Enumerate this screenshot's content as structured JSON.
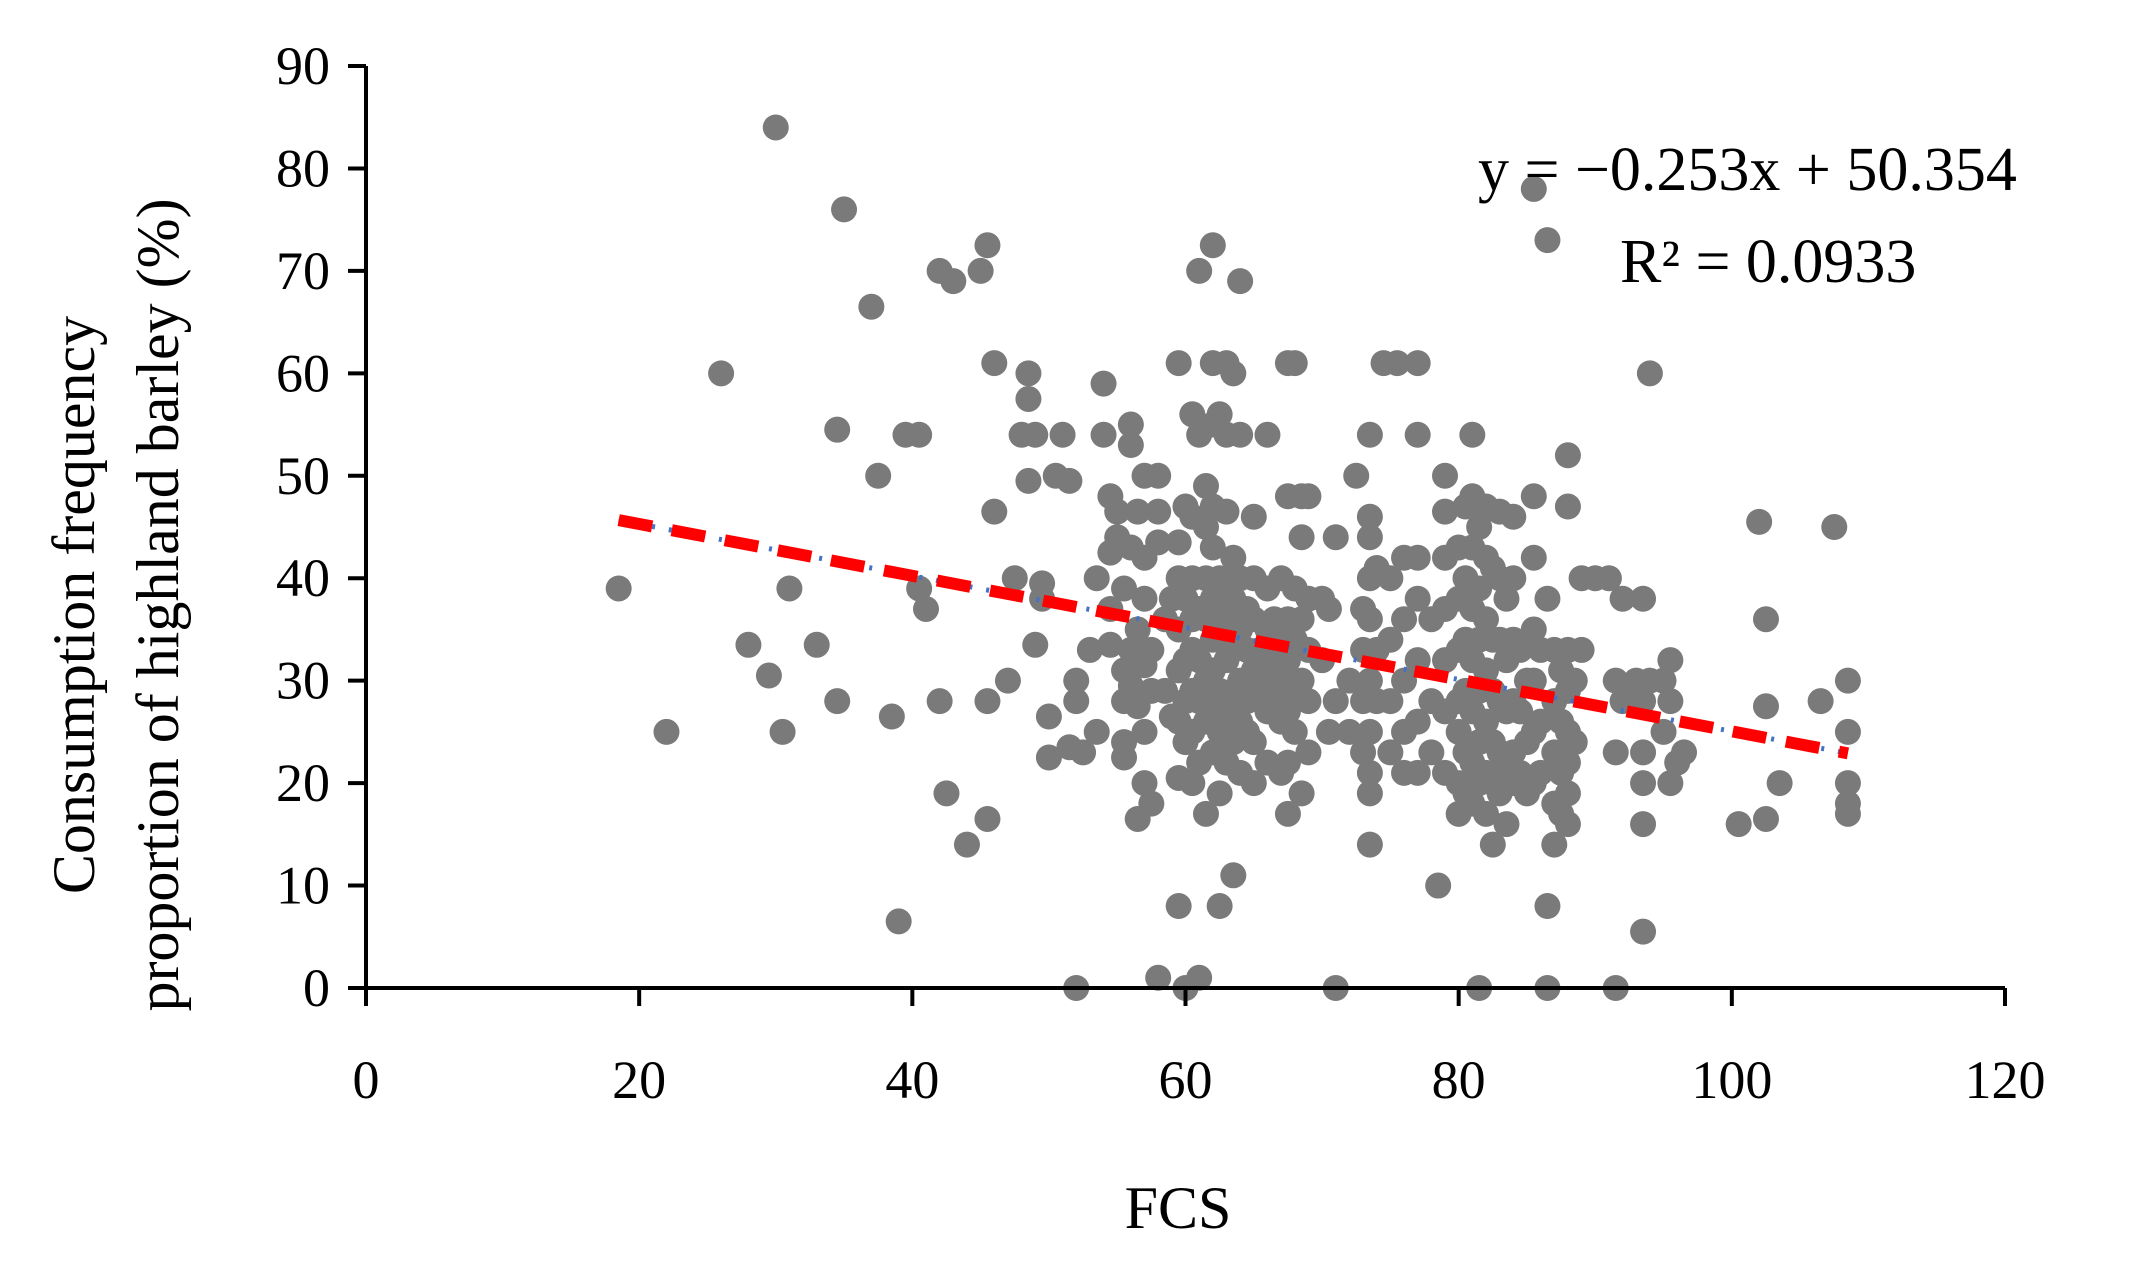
{
  "chart_data": {
    "type": "scatter",
    "title": "",
    "xlabel": "FCS",
    "ylabel_lines": [
      "Consumption frequency",
      "proportion of highland barley (%)"
    ],
    "xlim": [
      0,
      120
    ],
    "ylim": [
      0,
      90
    ],
    "xticks": [
      0,
      20,
      40,
      60,
      80,
      100,
      120
    ],
    "yticks": [
      0,
      10,
      20,
      30,
      40,
      50,
      60,
      70,
      80,
      90
    ],
    "grid": false,
    "legend": "none",
    "equation": "y = −0.253x + 50.354",
    "r_squared": "R² = 0.0933",
    "colors": {
      "points": "#7a7a7a",
      "trendline": "#ff0000",
      "trendline_underlay": "#4472c4",
      "axis": "#000000"
    },
    "trendline": {
      "slope": -0.253,
      "intercept": 50.354,
      "x_range": [
        18.5,
        108.5
      ]
    },
    "points": [
      [
        30,
        84
      ],
      [
        35,
        76
      ],
      [
        45.5,
        72.5
      ],
      [
        26,
        60
      ],
      [
        34.5,
        54.5
      ],
      [
        37,
        66.5
      ],
      [
        37.5,
        50
      ],
      [
        39.5,
        54
      ],
      [
        40.5,
        54
      ],
      [
        42,
        70
      ],
      [
        43,
        69
      ],
      [
        45,
        70
      ],
      [
        46,
        61
      ],
      [
        48.5,
        60
      ],
      [
        48.5,
        57.5
      ],
      [
        18.5,
        39
      ],
      [
        22,
        25
      ],
      [
        28,
        33.5
      ],
      [
        29.5,
        30.5
      ],
      [
        30.5,
        25
      ],
      [
        31,
        39
      ],
      [
        33,
        33.5
      ],
      [
        34.5,
        28
      ],
      [
        38.5,
        26.5
      ],
      [
        39,
        6.5
      ],
      [
        40.5,
        39
      ],
      [
        41,
        37
      ],
      [
        42,
        28
      ],
      [
        42.5,
        19
      ],
      [
        44,
        14
      ],
      [
        45.5,
        16.5
      ],
      [
        45.5,
        28
      ],
      [
        46,
        46.5
      ],
      [
        47,
        30
      ],
      [
        47.5,
        40
      ],
      [
        48,
        54
      ],
      [
        48.5,
        49.5
      ],
      [
        49,
        54
      ],
      [
        49,
        33.5
      ],
      [
        49.5,
        39.5
      ],
      [
        49.5,
        38
      ],
      [
        50,
        26.5
      ],
      [
        50,
        22.5
      ],
      [
        50.5,
        50
      ],
      [
        51,
        54
      ],
      [
        51.5,
        49.5
      ],
      [
        51.5,
        23.5
      ],
      [
        52,
        30
      ],
      [
        52,
        28
      ],
      [
        52,
        0
      ],
      [
        52.5,
        23
      ],
      [
        53,
        33
      ],
      [
        53.5,
        40
      ],
      [
        53.5,
        25
      ],
      [
        54,
        59
      ],
      [
        54,
        54
      ],
      [
        54.5,
        48
      ],
      [
        54.5,
        42.5
      ],
      [
        54.5,
        37
      ],
      [
        54.5,
        33.5
      ],
      [
        55,
        46.5
      ],
      [
        55,
        44
      ],
      [
        55.5,
        39
      ],
      [
        55.5,
        31
      ],
      [
        55.5,
        28
      ],
      [
        55.5,
        24
      ],
      [
        55.5,
        22.5
      ],
      [
        56,
        55
      ],
      [
        56,
        53
      ],
      [
        56,
        43
      ],
      [
        56,
        33
      ],
      [
        56,
        29.5
      ],
      [
        56.5,
        35
      ],
      [
        56.5,
        27.5
      ],
      [
        56.5,
        16.5
      ],
      [
        56.5,
        46.5
      ],
      [
        57,
        50
      ],
      [
        57,
        42
      ],
      [
        57,
        38
      ],
      [
        57,
        31.5
      ],
      [
        57,
        25
      ],
      [
        57,
        20
      ],
      [
        57.5,
        33
      ],
      [
        57.5,
        29
      ],
      [
        57.5,
        18
      ],
      [
        58,
        50
      ],
      [
        58,
        46.5
      ],
      [
        58,
        43.5
      ],
      [
        58,
        1
      ],
      [
        58.5,
        36
      ],
      [
        58.5,
        29
      ],
      [
        59,
        38
      ],
      [
        59,
        26.5
      ],
      [
        59.5,
        61
      ],
      [
        59.5,
        43.5
      ],
      [
        59.5,
        40
      ],
      [
        59.5,
        35
      ],
      [
        59.5,
        31
      ],
      [
        59.5,
        26
      ],
      [
        59.5,
        20.5
      ],
      [
        59.5,
        8
      ],
      [
        60,
        47
      ],
      [
        60,
        38
      ],
      [
        60,
        32
      ],
      [
        60,
        28
      ],
      [
        60,
        24
      ],
      [
        60,
        0
      ],
      [
        60.5,
        56
      ],
      [
        60.5,
        46
      ],
      [
        60.5,
        40
      ],
      [
        60.5,
        36
      ],
      [
        60.5,
        33
      ],
      [
        60.5,
        29
      ],
      [
        60.5,
        25
      ],
      [
        60.5,
        20
      ],
      [
        61,
        70
      ],
      [
        61,
        54
      ],
      [
        61,
        37
      ],
      [
        61,
        32
      ],
      [
        61,
        28
      ],
      [
        61,
        22
      ],
      [
        61,
        1
      ],
      [
        61.5,
        49
      ],
      [
        61.5,
        45
      ],
      [
        61.5,
        40
      ],
      [
        61.5,
        36
      ],
      [
        61.5,
        30
      ],
      [
        61.5,
        26
      ],
      [
        61.5,
        17
      ],
      [
        62,
        72.5
      ],
      [
        62,
        61
      ],
      [
        62,
        55
      ],
      [
        62,
        47
      ],
      [
        62,
        43
      ],
      [
        62,
        38
      ],
      [
        62,
        34
      ],
      [
        62,
        31
      ],
      [
        62,
        27
      ],
      [
        62,
        23
      ],
      [
        62.5,
        56
      ],
      [
        62.5,
        40
      ],
      [
        62.5,
        35
      ],
      [
        62.5,
        29
      ],
      [
        62.5,
        25
      ],
      [
        62.5,
        19
      ],
      [
        62.5,
        8
      ],
      [
        63,
        61
      ],
      [
        63,
        54
      ],
      [
        63,
        46.5
      ],
      [
        63,
        37
      ],
      [
        63,
        32
      ],
      [
        63,
        27
      ],
      [
        63,
        22
      ],
      [
        63.5,
        60
      ],
      [
        63.5,
        42
      ],
      [
        63.5,
        38
      ],
      [
        63.5,
        33
      ],
      [
        63.5,
        29
      ],
      [
        63.5,
        24
      ],
      [
        63.5,
        11
      ],
      [
        64,
        69
      ],
      [
        64,
        54
      ],
      [
        64,
        40
      ],
      [
        64,
        35
      ],
      [
        64,
        30
      ],
      [
        64,
        26
      ],
      [
        64,
        21
      ],
      [
        64.5,
        37
      ],
      [
        64.5,
        33
      ],
      [
        64.5,
        28
      ],
      [
        64.5,
        25
      ],
      [
        65,
        46
      ],
      [
        65,
        40
      ],
      [
        65,
        36
      ],
      [
        65,
        31
      ],
      [
        65,
        24
      ],
      [
        65,
        20
      ],
      [
        65.5,
        33
      ],
      [
        65.5,
        29
      ],
      [
        66,
        54
      ],
      [
        66,
        39
      ],
      [
        66,
        35
      ],
      [
        66,
        30
      ],
      [
        66,
        27
      ],
      [
        66,
        22
      ],
      [
        66.5,
        36
      ],
      [
        66.5,
        32
      ],
      [
        66.5,
        28
      ],
      [
        67,
        40
      ],
      [
        67,
        34
      ],
      [
        67,
        30
      ],
      [
        67,
        26
      ],
      [
        67,
        21
      ],
      [
        67.5,
        61
      ],
      [
        67.5,
        48
      ],
      [
        67.5,
        36
      ],
      [
        67.5,
        32
      ],
      [
        67.5,
        27
      ],
      [
        67.5,
        22
      ],
      [
        67.5,
        17
      ],
      [
        68,
        61
      ],
      [
        68,
        39
      ],
      [
        68,
        34
      ],
      [
        68,
        29
      ],
      [
        68,
        25
      ],
      [
        68.5,
        48
      ],
      [
        68.5,
        44
      ],
      [
        68.5,
        36
      ],
      [
        68.5,
        30
      ],
      [
        68.5,
        19
      ],
      [
        69,
        48
      ],
      [
        69,
        38
      ],
      [
        69,
        33
      ],
      [
        69,
        28
      ],
      [
        69,
        23
      ],
      [
        70,
        38
      ],
      [
        70,
        32
      ],
      [
        70.5,
        37
      ],
      [
        70.5,
        25
      ],
      [
        71,
        44
      ],
      [
        71,
        28
      ],
      [
        71,
        0
      ],
      [
        72,
        30
      ],
      [
        72,
        25
      ],
      [
        72.5,
        50
      ],
      [
        73,
        37
      ],
      [
        73,
        33
      ],
      [
        73,
        28
      ],
      [
        73,
        23
      ],
      [
        73.5,
        54
      ],
      [
        73.5,
        46
      ],
      [
        73.5,
        44
      ],
      [
        73.5,
        40
      ],
      [
        73.5,
        36
      ],
      [
        73.5,
        30
      ],
      [
        73.5,
        25
      ],
      [
        73.5,
        21
      ],
      [
        73.5,
        19
      ],
      [
        73.5,
        14
      ],
      [
        74,
        41
      ],
      [
        74,
        33
      ],
      [
        74,
        28
      ],
      [
        74.5,
        61
      ],
      [
        75,
        40
      ],
      [
        75,
        34
      ],
      [
        75,
        28
      ],
      [
        75,
        23
      ],
      [
        75.5,
        61
      ],
      [
        76,
        42
      ],
      [
        76,
        36
      ],
      [
        76,
        30
      ],
      [
        76,
        25
      ],
      [
        76,
        21
      ],
      [
        77,
        61
      ],
      [
        77,
        54
      ],
      [
        77,
        42
      ],
      [
        77,
        38
      ],
      [
        77,
        32
      ],
      [
        77,
        26
      ],
      [
        77,
        21
      ],
      [
        78,
        36
      ],
      [
        78,
        28
      ],
      [
        78,
        23
      ],
      [
        78.5,
        10
      ],
      [
        79,
        50
      ],
      [
        79,
        46.5
      ],
      [
        79,
        42
      ],
      [
        79,
        37
      ],
      [
        79,
        32
      ],
      [
        79,
        27
      ],
      [
        79,
        21
      ],
      [
        80,
        43
      ],
      [
        80,
        38
      ],
      [
        80,
        33
      ],
      [
        80,
        28
      ],
      [
        80,
        25
      ],
      [
        80,
        20
      ],
      [
        80,
        17
      ],
      [
        80.5,
        47
      ],
      [
        80.5,
        40
      ],
      [
        80.5,
        34
      ],
      [
        80.5,
        29
      ],
      [
        80.5,
        23
      ],
      [
        80.5,
        19
      ],
      [
        81,
        54
      ],
      [
        81,
        48
      ],
      [
        81,
        43
      ],
      [
        81,
        37
      ],
      [
        81,
        32
      ],
      [
        81,
        27
      ],
      [
        81,
        22
      ],
      [
        81,
        18
      ],
      [
        81.5,
        45
      ],
      [
        81.5,
        39
      ],
      [
        81.5,
        34
      ],
      [
        81.5,
        29
      ],
      [
        81.5,
        24
      ],
      [
        81.5,
        20
      ],
      [
        81.5,
        0
      ],
      [
        82,
        47
      ],
      [
        82,
        42
      ],
      [
        82,
        36
      ],
      [
        82,
        31
      ],
      [
        82,
        26
      ],
      [
        82,
        21
      ],
      [
        82,
        17
      ],
      [
        82.5,
        41
      ],
      [
        82.5,
        34
      ],
      [
        82.5,
        29
      ],
      [
        82.5,
        24
      ],
      [
        82.5,
        20
      ],
      [
        82.5,
        14
      ],
      [
        83,
        46.5
      ],
      [
        83,
        40
      ],
      [
        83,
        34
      ],
      [
        83,
        28
      ],
      [
        83,
        23
      ],
      [
        83,
        19
      ],
      [
        83.5,
        38
      ],
      [
        83.5,
        32
      ],
      [
        83.5,
        27
      ],
      [
        83.5,
        22
      ],
      [
        83.5,
        16
      ],
      [
        84,
        46
      ],
      [
        84,
        40
      ],
      [
        84,
        34
      ],
      [
        84,
        28
      ],
      [
        84,
        23
      ],
      [
        84,
        20
      ],
      [
        84.5,
        33
      ],
      [
        84.5,
        27
      ],
      [
        84.5,
        21
      ],
      [
        85,
        30
      ],
      [
        85,
        24
      ],
      [
        85,
        19
      ],
      [
        85.5,
        78
      ],
      [
        85.5,
        48
      ],
      [
        85.5,
        42
      ],
      [
        85.5,
        35
      ],
      [
        85.5,
        30
      ],
      [
        85.5,
        25
      ],
      [
        85.5,
        20
      ],
      [
        86,
        33
      ],
      [
        86,
        26
      ],
      [
        86,
        21
      ],
      [
        86.5,
        73
      ],
      [
        86.5,
        38
      ],
      [
        86.5,
        8
      ],
      [
        86.5,
        0
      ],
      [
        87,
        33
      ],
      [
        87,
        28
      ],
      [
        87,
        23
      ],
      [
        87,
        18
      ],
      [
        87,
        14
      ],
      [
        87.5,
        31
      ],
      [
        87.5,
        26
      ],
      [
        87.5,
        21
      ],
      [
        87.5,
        17
      ],
      [
        88,
        52
      ],
      [
        88,
        47
      ],
      [
        88,
        33
      ],
      [
        88,
        29
      ],
      [
        88,
        25
      ],
      [
        88,
        22
      ],
      [
        88,
        19
      ],
      [
        88,
        16
      ],
      [
        88.5,
        30
      ],
      [
        88.5,
        24
      ],
      [
        89,
        40
      ],
      [
        89,
        33
      ],
      [
        90,
        40
      ],
      [
        91,
        40
      ],
      [
        91.5,
        30
      ],
      [
        91.5,
        23
      ],
      [
        91.5,
        0
      ],
      [
        92,
        38
      ],
      [
        92,
        28
      ],
      [
        93,
        30
      ],
      [
        93.5,
        38
      ],
      [
        93.5,
        28
      ],
      [
        93.5,
        23
      ],
      [
        93.5,
        20
      ],
      [
        93.5,
        16
      ],
      [
        93.5,
        5.5
      ],
      [
        94,
        60
      ],
      [
        94,
        30
      ],
      [
        95,
        30
      ],
      [
        95,
        25
      ],
      [
        95.5,
        32
      ],
      [
        95.5,
        28
      ],
      [
        95.5,
        20
      ],
      [
        96,
        22
      ],
      [
        96.5,
        23
      ],
      [
        100.5,
        16
      ],
      [
        102,
        45.5
      ],
      [
        102.5,
        16.5
      ],
      [
        102.5,
        27.5
      ],
      [
        102.5,
        36
      ],
      [
        103.5,
        20
      ],
      [
        106.5,
        28
      ],
      [
        107.5,
        45
      ],
      [
        108.5,
        30
      ],
      [
        108.5,
        25
      ],
      [
        108.5,
        20
      ],
      [
        108.5,
        18
      ],
      [
        108.5,
        17
      ]
    ]
  }
}
